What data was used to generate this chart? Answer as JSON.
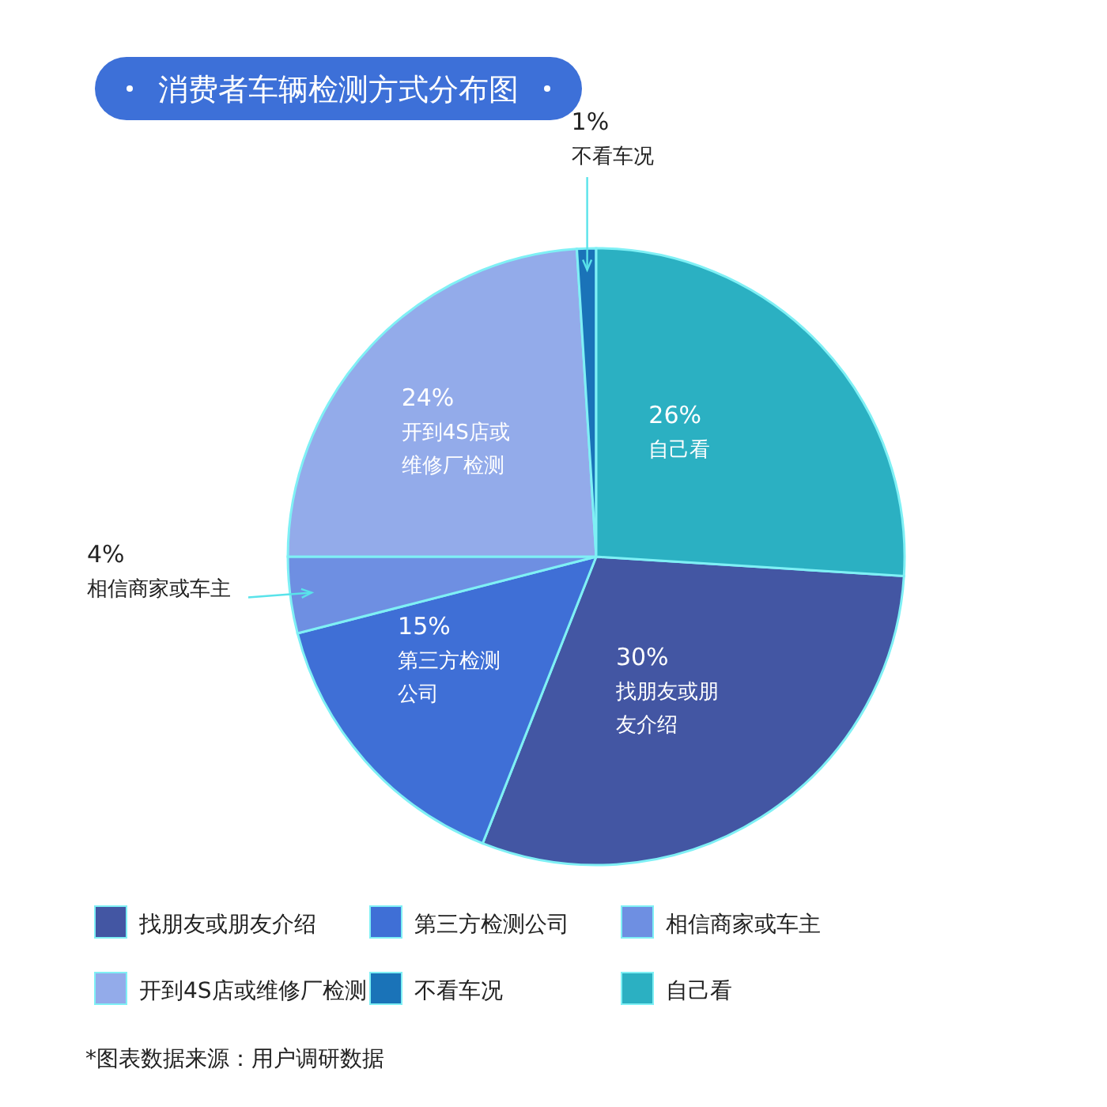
{
  "chart_data": {
    "type": "pie",
    "title": "消费者车辆检测方式分布图",
    "categories": [
      "找朋友或朋友介绍",
      "第三方检测公司",
      "相信商家或车主",
      "开到4S店或维修厂检测",
      "不看车况",
      "自己看"
    ],
    "values": [
      30,
      15,
      4,
      24,
      1,
      26
    ],
    "colors": [
      "#4356a3",
      "#3f6fd6",
      "#6e8fe2",
      "#93abea",
      "#1a73b8",
      "#2bb0c2"
    ],
    "value_labels": [
      "30%",
      "15%",
      "4%",
      "24%",
      "1%",
      "26%"
    ],
    "legend": "bottom",
    "annotations": [
      "*图表数据来源：用户调研数据"
    ]
  }
}
